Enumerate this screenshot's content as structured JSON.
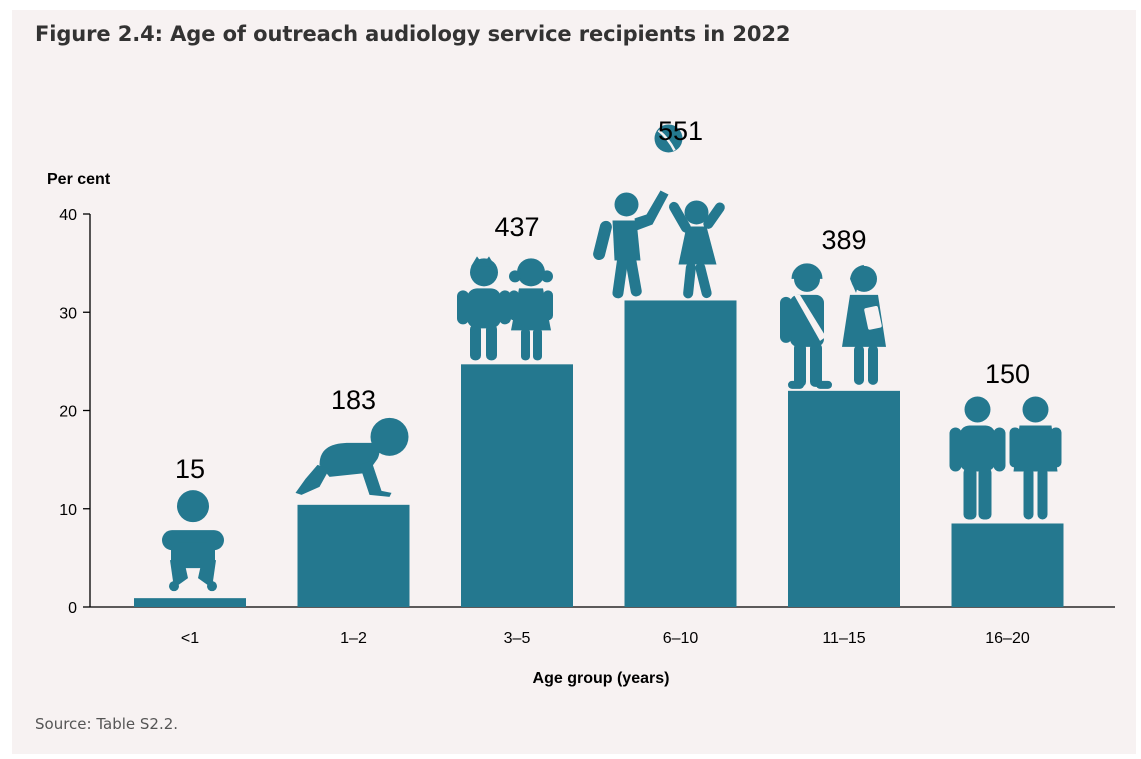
{
  "title": "Figure 2.4: Age of outreach audiology service recipients in 2022",
  "source": "Source: Table S2.2.",
  "colors": {
    "bar": "#24788f",
    "background": "#f7f2f2"
  },
  "chart_data": {
    "type": "bar",
    "title": "Figure 2.4: Age of outreach audiology service recipients in 2022",
    "xlabel": "Age group (years)",
    "ylabel": "Per cent",
    "ylim": [
      0,
      40
    ],
    "yticks": [
      "0",
      "10",
      "20",
      "30",
      "40"
    ],
    "categories": [
      "<1",
      "1–2",
      "3–5",
      "6–10",
      "11–15",
      "16–20"
    ],
    "values": [
      0.9,
      10.4,
      24.7,
      31.2,
      22.0,
      8.5
    ],
    "data_labels": [
      "15",
      "183",
      "437",
      "551",
      "389",
      "150"
    ],
    "icons": [
      "baby-icon",
      "crawling-toddler-icon",
      "young-children-icon",
      "playing-children-ball-icon",
      "teen-students-icon",
      "young-adults-icon"
    ],
    "grid": false,
    "legend": "none"
  }
}
